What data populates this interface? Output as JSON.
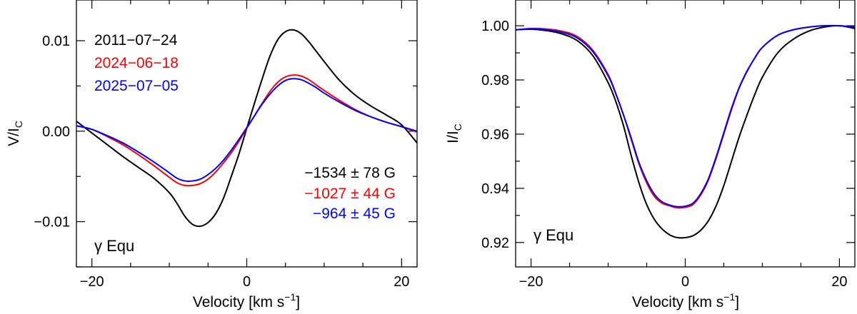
{
  "chart_data": [
    {
      "type": "line",
      "panel": "left",
      "xlabel": "Velocity [km s",
      "xlabel_sup": "−1",
      "xlabel_close": "]",
      "ylabel": "V/I",
      "ylabel_sub": "C",
      "xlim": [
        -22,
        22
      ],
      "ylim": [
        -0.015,
        0.0145
      ],
      "xticks": [
        {
          "v": -20,
          "label": "−20"
        },
        {
          "v": 0,
          "label": "0"
        },
        {
          "v": 20,
          "label": "20"
        }
      ],
      "yticks": [
        {
          "v": 0.01,
          "label": "0.01"
        },
        {
          "v": 0.0,
          "label": "0.00"
        },
        {
          "v": -0.01,
          "label": "−0.01"
        }
      ],
      "annotation": "γ Equ",
      "legend": [
        {
          "label": "2011−07−24",
          "color": "#000000"
        },
        {
          "label": "2024−06−18",
          "color": "#ff0000"
        },
        {
          "label": "2025−07−05",
          "color": "#0000ff"
        }
      ],
      "field_labels": [
        {
          "label": "−1534 ± 78 G",
          "color": "#000000"
        },
        {
          "label": "−1027 ± 44 G",
          "color": "#ff0000"
        },
        {
          "label": "−964 ± 45 G",
          "color": "#0000ff"
        }
      ],
      "series": [
        {
          "name": "2011-07-24",
          "color": "#000000",
          "x": [
            -22,
            -20,
            -18,
            -16,
            -14,
            -12,
            -10,
            -9,
            -8,
            -7,
            -6,
            -5,
            -4,
            -3,
            -2,
            -1,
            0,
            1,
            2,
            3,
            4,
            5,
            6,
            7,
            8,
            9,
            10,
            12,
            14,
            16,
            18,
            20,
            22
          ],
          "y": [
            0.0011,
            -0.0002,
            -0.0015,
            -0.0028,
            -0.004,
            -0.0052,
            -0.0068,
            -0.008,
            -0.0094,
            -0.0103,
            -0.0105,
            -0.0101,
            -0.0091,
            -0.0074,
            -0.005,
            -0.0025,
            0.0003,
            0.0031,
            0.0058,
            0.0083,
            0.0101,
            0.011,
            0.0112,
            0.0108,
            0.0099,
            0.0088,
            0.0077,
            0.0056,
            0.004,
            0.0028,
            0.0018,
            0.0007,
            -0.0013
          ]
        },
        {
          "name": "2024-06-18",
          "color": "#ff0000",
          "x": [
            -22,
            -20,
            -18,
            -16,
            -14,
            -12,
            -10,
            -9,
            -8,
            -7,
            -6,
            -5,
            -4,
            -3,
            -2,
            -1,
            0,
            1,
            2,
            3,
            4,
            5,
            6,
            7,
            8,
            9,
            10,
            12,
            14,
            16,
            18,
            20,
            22
          ],
          "y": [
            0.0006,
            0.0002,
            -0.0006,
            -0.0015,
            -0.0026,
            -0.0038,
            -0.0051,
            -0.0057,
            -0.006,
            -0.006,
            -0.0058,
            -0.0053,
            -0.0045,
            -0.0035,
            -0.0024,
            -0.0011,
            0.0003,
            0.0017,
            0.0031,
            0.0044,
            0.0054,
            0.006,
            0.0062,
            0.0061,
            0.0057,
            0.0051,
            0.0045,
            0.0034,
            0.0024,
            0.0016,
            0.001,
            0.0005,
            -0.0001
          ]
        },
        {
          "name": "2025-07-05",
          "color": "#0000ff",
          "x": [
            -22,
            -20,
            -18,
            -16,
            -14,
            -12,
            -10,
            -9,
            -8,
            -7,
            -6,
            -5,
            -4,
            -3,
            -2,
            -1,
            0,
            1,
            2,
            3,
            4,
            5,
            6,
            7,
            8,
            9,
            10,
            12,
            14,
            16,
            18,
            20,
            22
          ],
          "y": [
            0.0006,
            0.0002,
            -0.0005,
            -0.0013,
            -0.0023,
            -0.0034,
            -0.0046,
            -0.0052,
            -0.0055,
            -0.0055,
            -0.0053,
            -0.0048,
            -0.0041,
            -0.0032,
            -0.0021,
            -0.0009,
            0.0004,
            0.0017,
            0.003,
            0.0041,
            0.005,
            0.0056,
            0.0058,
            0.0057,
            0.0053,
            0.0048,
            0.0042,
            0.0032,
            0.0023,
            0.0016,
            0.001,
            0.0005,
            0.0
          ]
        }
      ]
    },
    {
      "type": "line",
      "panel": "right",
      "xlabel": "Velocity [km s",
      "xlabel_sup": "−1",
      "xlabel_close": "]",
      "ylabel": "I/I",
      "ylabel_sub": "C",
      "xlim": [
        -22,
        22
      ],
      "ylim": [
        0.911,
        1.0095
      ],
      "xticks": [
        {
          "v": -20,
          "label": "−20"
        },
        {
          "v": 0,
          "label": "0"
        },
        {
          "v": 20,
          "label": "20"
        }
      ],
      "yticks": [
        {
          "v": 1.0,
          "label": "1.00"
        },
        {
          "v": 0.98,
          "label": "0.98"
        },
        {
          "v": 0.96,
          "label": "0.96"
        },
        {
          "v": 0.94,
          "label": "0.94"
        },
        {
          "v": 0.92,
          "label": "0.92"
        }
      ],
      "annotation": "γ Equ",
      "series": [
        {
          "name": "2011-07-24",
          "color": "#000000",
          "x": [
            -22,
            -20,
            -18,
            -16,
            -14,
            -12,
            -10,
            -9,
            -8,
            -7,
            -6,
            -5,
            -4,
            -3,
            -2,
            -1,
            0,
            1,
            2,
            3,
            4,
            5,
            6,
            7,
            8,
            9,
            10,
            12,
            14,
            16,
            18,
            20,
            22
          ],
          "y": [
            0.9985,
            0.9987,
            0.9982,
            0.997,
            0.9945,
            0.989,
            0.979,
            0.972,
            0.963,
            0.952,
            0.942,
            0.934,
            0.9285,
            0.925,
            0.9228,
            0.9218,
            0.9218,
            0.9225,
            0.9245,
            0.928,
            0.9335,
            0.941,
            0.95,
            0.959,
            0.967,
            0.9745,
            0.981,
            0.99,
            0.995,
            0.998,
            0.9995,
            1.0,
            0.999
          ]
        },
        {
          "name": "2024-06-18",
          "color": "#ff0000",
          "x": [
            -22,
            -20,
            -18,
            -16,
            -14,
            -12,
            -10,
            -9,
            -8,
            -7,
            -6,
            -5,
            -4,
            -3,
            -2,
            -1,
            0,
            1,
            2,
            3,
            4,
            5,
            6,
            7,
            8,
            9,
            10,
            12,
            14,
            16,
            18,
            20,
            22
          ],
          "y": [
            0.9985,
            0.999,
            0.9988,
            0.998,
            0.996,
            0.991,
            0.982,
            0.975,
            0.967,
            0.958,
            0.949,
            0.942,
            0.937,
            0.9345,
            0.9335,
            0.9328,
            0.933,
            0.934,
            0.9375,
            0.943,
            0.951,
            0.96,
            0.969,
            0.977,
            0.983,
            0.988,
            0.992,
            0.9965,
            0.9985,
            0.9995,
            1.0,
            1.0,
            0.9995
          ]
        },
        {
          "name": "2025-07-05",
          "color": "#0000ff",
          "x": [
            -22,
            -20,
            -18,
            -16,
            -14,
            -12,
            -10,
            -9,
            -8,
            -7,
            -6,
            -5,
            -4,
            -3,
            -2,
            -1,
            0,
            1,
            2,
            3,
            4,
            5,
            6,
            7,
            8,
            9,
            10,
            12,
            14,
            16,
            18,
            20,
            22
          ],
          "y": [
            0.9985,
            0.9988,
            0.9985,
            0.9976,
            0.9955,
            0.9905,
            0.9815,
            0.9748,
            0.967,
            0.9585,
            0.9495,
            0.9428,
            0.9378,
            0.935,
            0.9338,
            0.9332,
            0.9334,
            0.9345,
            0.938,
            0.9435,
            0.9515,
            0.9605,
            0.9695,
            0.9772,
            0.9832,
            0.988,
            0.992,
            0.9965,
            0.9985,
            0.9995,
            1.0,
            1.0,
            0.9995
          ]
        }
      ]
    }
  ]
}
